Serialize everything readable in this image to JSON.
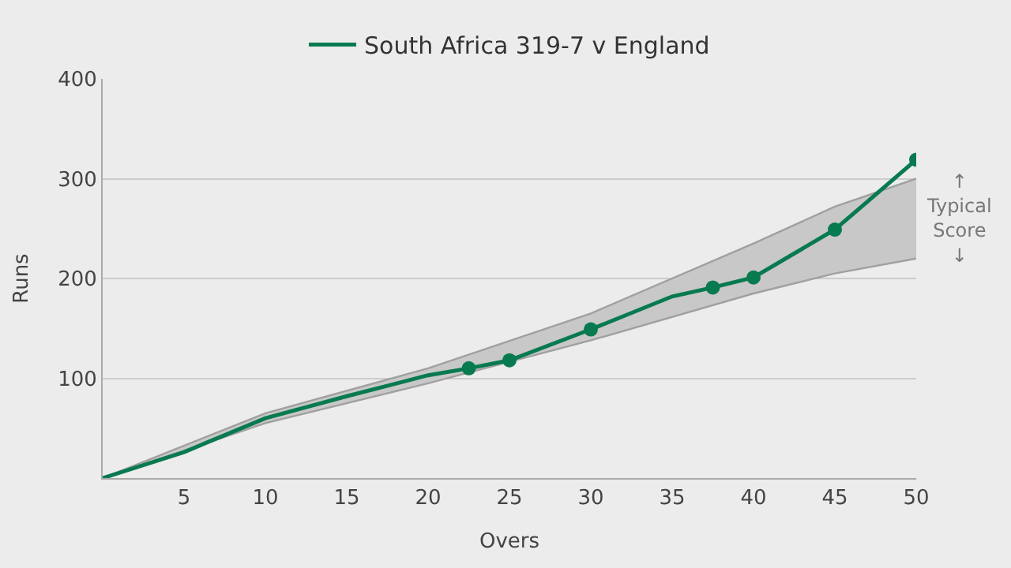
{
  "chart_data": {
    "type": "line",
    "xlabel": "Overs",
    "ylabel": "Runs",
    "xlim": [
      0,
      50
    ],
    "ylim": [
      0,
      400
    ],
    "xticks": [
      5,
      10,
      15,
      20,
      25,
      30,
      35,
      40,
      45,
      50
    ],
    "yticks": [
      100,
      200,
      300,
      400
    ],
    "grid": "y",
    "legend": "top",
    "line_style": "solid",
    "series": [
      {
        "type": "line",
        "color": "#a0a0a0",
        "marker": "none",
        "x": [
          0,
          10,
          20,
          30,
          40,
          45,
          50
        ],
        "values": [
          0,
          55,
          95,
          138,
          185,
          205,
          220
        ]
      },
      {
        "type": "area",
        "color": "#c8c8c8",
        "x": [
          0,
          10,
          20,
          30,
          40,
          45,
          50
        ],
        "values": [
          0,
          65,
          110,
          165,
          235,
          272,
          300
        ]
      },
      {
        "name": "South Africa 319-7 v England",
        "color": "#087a50",
        "marker": "none",
        "x": [
          0,
          5,
          10,
          15,
          20,
          22.5,
          25,
          30,
          35,
          37.5,
          40,
          45,
          50
        ],
        "values": [
          0,
          26,
          60,
          82,
          103,
          110,
          118,
          149,
          182,
          191,
          201,
          249,
          319
        ]
      },
      {
        "type": "scatter",
        "color": "#087a50",
        "marker": "circle",
        "x": [
          22.5,
          25,
          30,
          37.5,
          40,
          45,
          50
        ],
        "values": [
          110,
          118,
          149,
          191,
          201,
          249,
          319
        ]
      }
    ],
    "annotations": [
      {
        "text": "↑\nTypical\nScore\n↓",
        "x": 50,
        "y": 260
      }
    ]
  }
}
